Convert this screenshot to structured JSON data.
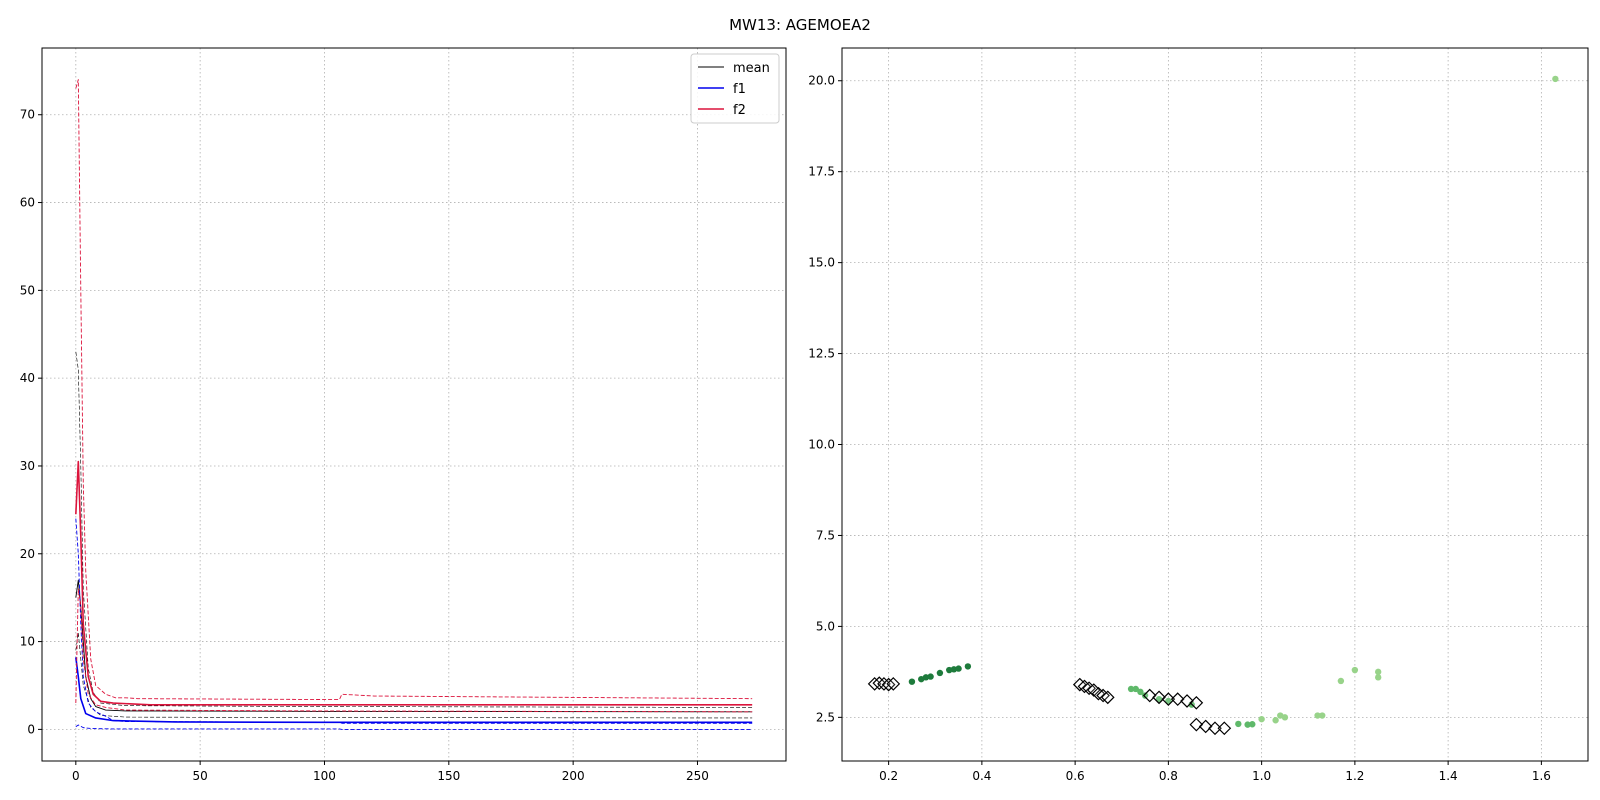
{
  "figure": {
    "title": "MW13: AGEMOEA2"
  },
  "chart_data": [
    {
      "type": "line",
      "panel": "left",
      "grid": true,
      "legend_placement": "top-right",
      "xlim": [
        -13.6,
        285.6
      ],
      "ylim": [
        -3.6,
        77.6
      ],
      "xticks": [
        0,
        50,
        100,
        150,
        200,
        250
      ],
      "yticks": [
        0,
        10,
        20,
        30,
        40,
        50,
        60,
        70
      ],
      "legend": [
        {
          "label": "mean",
          "color": "#000000",
          "width": 0.9
        },
        {
          "label": "f1",
          "color": "#0000ee",
          "width": 1.6
        },
        {
          "label": "f2",
          "color": "#dc143c",
          "width": 1.6
        }
      ],
      "series": [
        {
          "name": "mean",
          "color": "#000000",
          "style": "solid",
          "width": 0.9,
          "points": [
            [
              0,
              15
            ],
            [
              1,
              17
            ],
            [
              2,
              14
            ],
            [
              4,
              6
            ],
            [
              6,
              3.5
            ],
            [
              8,
              2.6
            ],
            [
              12,
              2.2
            ],
            [
              20,
              2.1
            ],
            [
              100,
              2.05
            ],
            [
              272,
              2.0
            ]
          ]
        },
        {
          "name": "",
          "color": "#000000",
          "style": "dashed",
          "width": 0.6,
          "points": [
            [
              0,
              43
            ],
            [
              1,
              41
            ],
            [
              2,
              30
            ],
            [
              3,
              16
            ],
            [
              5,
              7
            ],
            [
              7,
              4.2
            ],
            [
              10,
              3
            ],
            [
              20,
              2.7
            ],
            [
              100,
              2.6
            ],
            [
              272,
              2.5
            ]
          ]
        },
        {
          "name": "",
          "color": "#000000",
          "style": "dashed",
          "width": 0.6,
          "points": [
            [
              0,
              9
            ],
            [
              1,
              11
            ],
            [
              3,
              5
            ],
            [
              6,
              2.5
            ],
            [
              10,
              1.6
            ],
            [
              20,
              1.4
            ],
            [
              100,
              1.35
            ],
            [
              272,
              1.3
            ]
          ]
        },
        {
          "name": "f1",
          "color": "#0000ee",
          "style": "solid",
          "width": 1.6,
          "points": [
            [
              0,
              8.2
            ],
            [
              1,
              6
            ],
            [
              2,
              3.5
            ],
            [
              4,
              1.8
            ],
            [
              8,
              1.3
            ],
            [
              15,
              1.0
            ],
            [
              40,
              0.85
            ],
            [
              100,
              0.8
            ],
            [
              272,
              0.8
            ]
          ]
        },
        {
          "name": "",
          "color": "#0000ee",
          "style": "dashed",
          "width": 0.9,
          "points": [
            [
              0,
              24
            ],
            [
              1,
              20
            ],
            [
              2,
              12
            ],
            [
              3,
              6
            ],
            [
              5,
              3
            ],
            [
              8,
              2
            ],
            [
              12,
              1.5
            ],
            [
              15,
              1.0
            ],
            [
              20,
              0.9
            ],
            [
              100,
              0.8
            ],
            [
              106,
              0.8
            ],
            [
              107,
              0.7
            ],
            [
              272,
              0.7
            ]
          ]
        },
        {
          "name": "",
          "color": "#0000ee",
          "style": "dashed",
          "width": 0.9,
          "points": [
            [
              0,
              0.3
            ],
            [
              1,
              0.5
            ],
            [
              3,
              0.2
            ],
            [
              6,
              0.1
            ],
            [
              15,
              0.05
            ],
            [
              100,
              0.05
            ],
            [
              106,
              0.05
            ],
            [
              107,
              0.0
            ],
            [
              272,
              0.0
            ]
          ]
        },
        {
          "name": "f2",
          "color": "#dc143c",
          "style": "solid",
          "width": 1.6,
          "points": [
            [
              0,
              24.5
            ],
            [
              1,
              30.5
            ],
            [
              2,
              22
            ],
            [
              3,
              12
            ],
            [
              5,
              6
            ],
            [
              7,
              4
            ],
            [
              10,
              3.2
            ],
            [
              15,
              3.0
            ],
            [
              30,
              2.8
            ],
            [
              100,
              2.8
            ],
            [
              272,
              2.8
            ]
          ]
        },
        {
          "name": "",
          "color": "#dc143c",
          "style": "dashed",
          "width": 0.9,
          "points": [
            [
              0,
              73
            ],
            [
              1,
              74
            ],
            [
              2,
              50
            ],
            [
              3,
              28
            ],
            [
              4,
              18
            ],
            [
              6,
              8
            ],
            [
              8,
              5
            ],
            [
              12,
              4
            ],
            [
              16,
              3.6
            ],
            [
              20,
              3.6
            ],
            [
              25,
              3.5
            ],
            [
              100,
              3.4
            ],
            [
              106,
              3.4
            ],
            [
              107,
              4.0
            ],
            [
              120,
              3.8
            ],
            [
              272,
              3.5
            ]
          ]
        },
        {
          "name": "",
          "color": "#dc143c",
          "style": "dashed",
          "width": 0.9,
          "points": [
            [
              0,
              3
            ],
            [
              1,
              16
            ],
            [
              2,
              14
            ],
            [
              3,
              8
            ],
            [
              5,
              4
            ],
            [
              8,
              2.8
            ],
            [
              12,
              2.5
            ],
            [
              20,
              2.2
            ],
            [
              100,
              2.1
            ],
            [
              272,
              2.0
            ]
          ]
        }
      ]
    },
    {
      "type": "scatter",
      "panel": "right",
      "grid": true,
      "xlim": [
        0.1,
        1.7
      ],
      "ylim": [
        1.3,
        20.9
      ],
      "xticks": [
        0.2,
        0.4,
        0.6,
        0.8,
        1.0,
        1.2,
        1.4,
        1.6
      ],
      "yticks": [
        2.5,
        5.0,
        7.5,
        10.0,
        12.5,
        15.0,
        17.5,
        20.0
      ],
      "series": [
        {
          "name": "",
          "marker": "circle",
          "color": "#1e7b3c",
          "points": [
            [
              0.25,
              3.48
            ],
            [
              0.27,
              3.55
            ],
            [
              0.28,
              3.6
            ],
            [
              0.29,
              3.62
            ],
            [
              0.31,
              3.72
            ],
            [
              0.33,
              3.8
            ],
            [
              0.34,
              3.82
            ],
            [
              0.35,
              3.84
            ],
            [
              0.37,
              3.9
            ]
          ]
        },
        {
          "name": "",
          "marker": "circle",
          "color": "#5fb96a",
          "points": [
            [
              0.72,
              3.28
            ],
            [
              0.73,
              3.28
            ],
            [
              0.74,
              3.2
            ],
            [
              0.75,
              3.1
            ],
            [
              0.78,
              3.0
            ],
            [
              0.8,
              2.95
            ],
            [
              0.85,
              2.85
            ],
            [
              0.95,
              2.32
            ],
            [
              0.97,
              2.3
            ],
            [
              0.98,
              2.31
            ]
          ]
        },
        {
          "name": "",
          "marker": "circle",
          "color": "#98d38a",
          "points": [
            [
              1.0,
              2.45
            ],
            [
              1.03,
              2.42
            ],
            [
              1.04,
              2.55
            ],
            [
              1.05,
              2.5
            ],
            [
              1.12,
              2.55
            ],
            [
              1.13,
              2.55
            ],
            [
              1.17,
              3.5
            ],
            [
              1.2,
              3.8
            ],
            [
              1.25,
              3.6
            ],
            [
              1.25,
              3.75
            ],
            [
              1.63,
              20.05
            ]
          ]
        },
        {
          "name": "",
          "marker": "diamond",
          "color": "#000000",
          "points": [
            [
              0.17,
              3.42
            ],
            [
              0.18,
              3.44
            ],
            [
              0.19,
              3.42
            ],
            [
              0.2,
              3.4
            ],
            [
              0.21,
              3.42
            ],
            [
              0.61,
              3.4
            ],
            [
              0.62,
              3.35
            ],
            [
              0.63,
              3.3
            ],
            [
              0.64,
              3.25
            ],
            [
              0.65,
              3.15
            ],
            [
              0.66,
              3.1
            ],
            [
              0.67,
              3.05
            ],
            [
              0.76,
              3.1
            ],
            [
              0.78,
              3.05
            ],
            [
              0.8,
              3.0
            ],
            [
              0.82,
              3.0
            ],
            [
              0.84,
              2.95
            ],
            [
              0.86,
              2.9
            ],
            [
              0.86,
              2.3
            ],
            [
              0.88,
              2.25
            ],
            [
              0.9,
              2.2
            ],
            [
              0.92,
              2.2
            ]
          ]
        }
      ]
    }
  ]
}
